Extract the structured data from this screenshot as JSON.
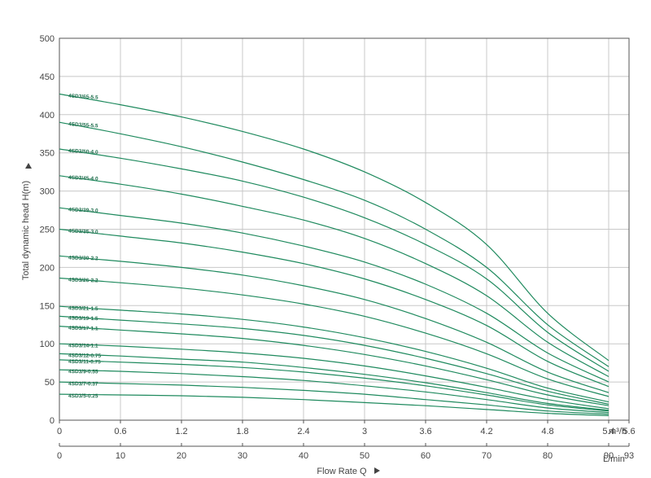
{
  "chart_data": {
    "type": "line",
    "ylabel": "Total dynamic head H(m)",
    "xlabel": "Flow Rate Q",
    "x_unit_top": "m³/h",
    "x_unit_bottom": "L/min",
    "ylim": [
      0,
      500
    ],
    "xlim": [
      0,
      5.6
    ],
    "y_ticks": [
      "0",
      "50",
      "100",
      "150",
      "200",
      "250",
      "300",
      "350",
      "400",
      "450",
      "500"
    ],
    "x_ticks_m3h": [
      "0",
      "0.6",
      "1.2",
      "1.8",
      "2.4",
      "3",
      "3.6",
      "4.2",
      "4.8",
      "5.4",
      "5.6"
    ],
    "x_ticks_lmin": [
      "0",
      "10",
      "20",
      "30",
      "40",
      "50",
      "60",
      "70",
      "80",
      "90",
      "93"
    ],
    "grid": true,
    "x": [
      0,
      0.6,
      1.2,
      1.8,
      2.4,
      3.0,
      3.6,
      4.2,
      4.8,
      5.4
    ],
    "series": [
      {
        "name": "4SD3/65-5.5",
        "values": [
          427,
          413,
          397,
          378,
          355,
          325,
          285,
          230,
          140,
          78
        ]
      },
      {
        "name": "4SD3/55-5.5",
        "values": [
          390,
          375,
          358,
          338,
          315,
          288,
          250,
          200,
          125,
          70
        ]
      },
      {
        "name": "4SD3/50-4.0",
        "values": [
          355,
          343,
          329,
          313,
          292,
          265,
          230,
          185,
          115,
          64
        ]
      },
      {
        "name": "4SD3/45-4.0",
        "values": [
          320,
          309,
          296,
          280,
          262,
          238,
          205,
          163,
          102,
          57
        ]
      },
      {
        "name": "4SD3/39-3.0",
        "values": [
          278,
          268,
          258,
          245,
          228,
          207,
          178,
          140,
          88,
          50
        ]
      },
      {
        "name": "4SD3/35-3.0",
        "values": [
          250,
          241,
          232,
          220,
          205,
          185,
          158,
          124,
          77,
          44
        ]
      },
      {
        "name": "4SD3/30-2.2",
        "values": [
          215,
          208,
          200,
          190,
          176,
          158,
          133,
          102,
          63,
          36
        ]
      },
      {
        "name": "4SD3/26-2.2",
        "values": [
          186,
          180,
          173,
          164,
          152,
          136,
          114,
          87,
          54,
          31
        ]
      },
      {
        "name": "4SD3/21-1.5",
        "values": [
          149,
          144,
          139,
          132,
          122,
          108,
          90,
          68,
          42,
          24
        ]
      },
      {
        "name": "4SD3/19-1.5",
        "values": [
          136,
          131,
          126,
          120,
          111,
          98,
          81,
          61,
          38,
          21
        ]
      },
      {
        "name": "4SD3/17-1.1",
        "values": [
          123,
          118,
          113,
          107,
          98,
          86,
          71,
          53,
          33,
          19
        ]
      },
      {
        "name": "4SD3/14-1.1",
        "values": [
          100,
          97,
          93,
          88,
          81,
          71,
          58,
          43,
          27,
          15
        ]
      },
      {
        "name": "4SD3/12-0.75",
        "values": [
          87,
          84,
          80,
          76,
          69,
          60,
          49,
          36,
          22,
          13
        ]
      },
      {
        "name": "4SD3/11-0.75",
        "values": [
          79,
          76,
          73,
          69,
          63,
          55,
          45,
          33,
          20,
          12
        ]
      },
      {
        "name": "4SD3/9-0.55",
        "values": [
          66,
          64,
          61,
          57,
          52,
          45,
          37,
          27,
          16,
          10
        ]
      },
      {
        "name": "4SD3/7-0.37",
        "values": [
          50,
          48,
          46,
          43,
          39,
          34,
          27,
          20,
          12,
          8
        ]
      },
      {
        "name": "4SD3/5-0.25",
        "values": [
          34,
          33,
          32,
          30,
          27,
          23,
          19,
          14,
          9,
          6
        ]
      }
    ],
    "colors": {
      "curve": "#1f8a5e",
      "label": "#1f6e4d",
      "grid": "#c8c8c8"
    }
  }
}
